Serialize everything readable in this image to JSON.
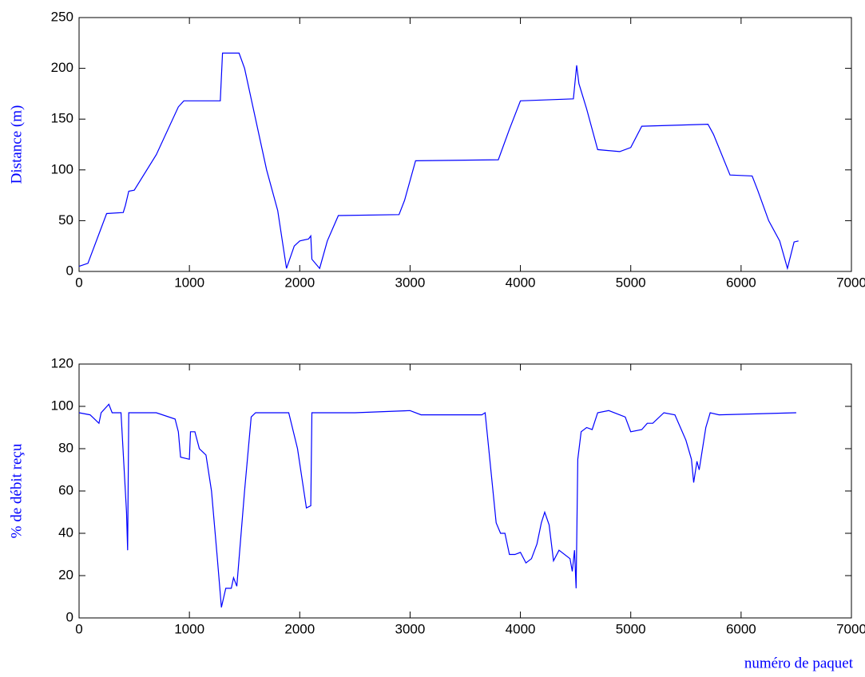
{
  "chart_data": [
    {
      "type": "line",
      "ylabel": "Distance (m)",
      "x": [
        0,
        80,
        250,
        400,
        420,
        450,
        500,
        700,
        900,
        950,
        1280,
        1300,
        1450,
        1500,
        1700,
        1800,
        1880,
        1950,
        2000,
        2080,
        2100,
        2110,
        2180,
        2250,
        2350,
        2900,
        2950,
        3050,
        3800,
        3900,
        4000,
        4480,
        4510,
        4530,
        4600,
        4700,
        4900,
        5000,
        5100,
        5700,
        5750,
        5900,
        6100,
        6150,
        6250,
        6350,
        6420,
        6480,
        6520
      ],
      "series": [
        {
          "color": "#0000ff",
          "values": [
            5,
            8,
            57,
            58,
            65,
            79,
            80,
            115,
            162,
            168,
            168,
            215,
            215,
            200,
            100,
            60,
            3,
            25,
            30,
            32,
            35,
            12,
            3,
            30,
            55,
            56,
            70,
            109,
            110,
            140,
            168,
            170,
            203,
            185,
            160,
            120,
            118,
            122,
            143,
            145,
            135,
            95,
            94,
            80,
            50,
            30,
            3,
            29,
            30
          ]
        }
      ],
      "xlim": [
        0,
        7000
      ],
      "xticks": [
        0,
        1000,
        2000,
        3000,
        4000,
        5000,
        6000,
        7000
      ],
      "ylim": [
        0,
        250
      ],
      "yticks": [
        0,
        50,
        100,
        150,
        200,
        250
      ]
    },
    {
      "type": "line",
      "ylabel": "% de débit reçu",
      "xlabel": "numéro de paquet",
      "x": [
        0,
        100,
        180,
        200,
        270,
        300,
        380,
        430,
        440,
        450,
        700,
        870,
        900,
        920,
        1000,
        1010,
        1050,
        1090,
        1150,
        1200,
        1250,
        1290,
        1330,
        1380,
        1400,
        1430,
        1500,
        1560,
        1600,
        1900,
        1980,
        2060,
        2100,
        2110,
        2500,
        3000,
        3100,
        3650,
        3680,
        3780,
        3820,
        3860,
        3900,
        3950,
        4000,
        4050,
        4100,
        4150,
        4190,
        4220,
        4260,
        4300,
        4350,
        4450,
        4470,
        4490,
        4505,
        4520,
        4550,
        4600,
        4650,
        4700,
        4800,
        4950,
        5000,
        5100,
        5150,
        5200,
        5300,
        5400,
        5450,
        5500,
        5550,
        5570,
        5600,
        5620,
        5680,
        5720,
        5800,
        6500
      ],
      "series": [
        {
          "color": "#0000ff",
          "values": [
            97,
            96,
            92,
            97,
            101,
            97,
            97,
            50,
            32,
            97,
            97,
            94,
            88,
            76,
            75,
            88,
            88,
            80,
            77,
            60,
            30,
            5,
            14,
            14,
            19,
            15,
            60,
            95,
            97,
            97,
            80,
            52,
            53,
            97,
            97,
            98,
            96,
            96,
            97,
            45,
            40,
            40,
            30,
            30,
            31,
            26,
            28,
            35,
            45,
            50,
            44,
            27,
            32,
            28,
            22,
            32,
            14,
            75,
            88,
            90,
            89,
            97,
            98,
            95,
            88,
            89,
            92,
            92,
            97,
            96,
            90,
            84,
            75,
            64,
            74,
            70,
            90,
            97,
            96,
            97
          ]
        }
      ],
      "xlim": [
        0,
        7000
      ],
      "xticks": [
        0,
        1000,
        2000,
        3000,
        4000,
        5000,
        6000,
        7000
      ],
      "ylim": [
        0,
        120
      ],
      "yticks": [
        0,
        20,
        40,
        60,
        80,
        100,
        120
      ]
    }
  ]
}
